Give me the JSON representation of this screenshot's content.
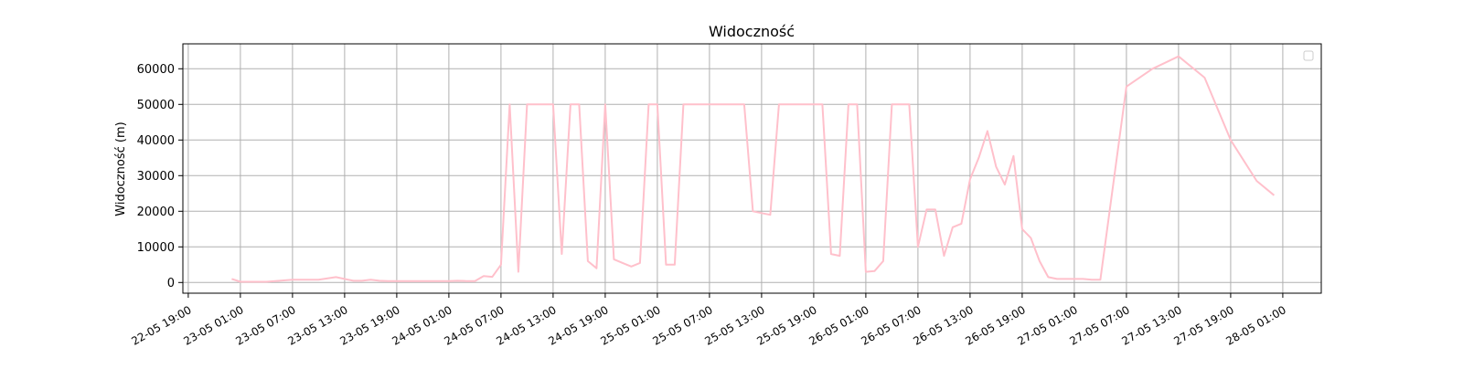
{
  "chart_data": {
    "type": "line",
    "title": "Widoczność",
    "xlabel": "",
    "ylabel": "Widoczność (m)",
    "x_unit": "hours since 22-05 19:00",
    "x_range": [
      -0.62,
      130.43
    ],
    "ylim": [
      -3000,
      67000
    ],
    "grid": true,
    "legend_placement": "top-right",
    "line_color": "#ffc0cb",
    "x_ticks": [
      {
        "label": "22-05 19:00",
        "value": 0
      },
      {
        "label": "23-05 01:00",
        "value": 6
      },
      {
        "label": "23-05 07:00",
        "value": 12
      },
      {
        "label": "23-05 13:00",
        "value": 18
      },
      {
        "label": "23-05 19:00",
        "value": 24
      },
      {
        "label": "24-05 01:00",
        "value": 30
      },
      {
        "label": "24-05 07:00",
        "value": 36
      },
      {
        "label": "24-05 13:00",
        "value": 42
      },
      {
        "label": "24-05 19:00",
        "value": 48
      },
      {
        "label": "25-05 01:00",
        "value": 54
      },
      {
        "label": "25-05 07:00",
        "value": 60
      },
      {
        "label": "25-05 13:00",
        "value": 66
      },
      {
        "label": "25-05 19:00",
        "value": 72
      },
      {
        "label": "26-05 01:00",
        "value": 78
      },
      {
        "label": "26-05 07:00",
        "value": 84
      },
      {
        "label": "26-05 13:00",
        "value": 90
      },
      {
        "label": "26-05 19:00",
        "value": 96
      },
      {
        "label": "27-05 01:00",
        "value": 102
      },
      {
        "label": "27-05 07:00",
        "value": 108
      },
      {
        "label": "27-05 13:00",
        "value": 114
      },
      {
        "label": "27-05 19:00",
        "value": 120
      },
      {
        "label": "28-05 01:00",
        "value": 126
      }
    ],
    "y_ticks": [
      {
        "label": "0",
        "value": 0
      },
      {
        "label": "10000",
        "value": 10000
      },
      {
        "label": "20000",
        "value": 20000
      },
      {
        "label": "30000",
        "value": 30000
      },
      {
        "label": "40000",
        "value": 40000
      },
      {
        "label": "50000",
        "value": 50000
      },
      {
        "label": "60000",
        "value": 60000
      }
    ],
    "series": [
      {
        "x": [
          5,
          6,
          9,
          12,
          15,
          17,
          19,
          20,
          21,
          22,
          23,
          24,
          25,
          26,
          27,
          28,
          29,
          30,
          31,
          32,
          33,
          34,
          35,
          36,
          37,
          38,
          39,
          40,
          41,
          42,
          43,
          44,
          45,
          46,
          47,
          48,
          49,
          50,
          51,
          52,
          53,
          54,
          55,
          56,
          57,
          58,
          59,
          60,
          61,
          62,
          63,
          64,
          65,
          66,
          67,
          68,
          69,
          70,
          71,
          72,
          73,
          74,
          75,
          76,
          77,
          78,
          79,
          80,
          81,
          82,
          83,
          84,
          85,
          86,
          87,
          88,
          89,
          90,
          91,
          92,
          93,
          94,
          95,
          96,
          97,
          98,
          99,
          100,
          101,
          102,
          103,
          104,
          105,
          108,
          111,
          114,
          117,
          120,
          123,
          125
        ],
        "y": [
          1000,
          200,
          200,
          800,
          800,
          1500,
          500,
          500,
          800,
          500,
          400,
          400,
          400,
          400,
          400,
          400,
          400,
          400,
          500,
          400,
          400,
          1800,
          1600,
          5000,
          50000,
          3000,
          50000,
          50000,
          50000,
          50000,
          8000,
          50000,
          50000,
          6000,
          4000,
          50000,
          6500,
          5500,
          4500,
          5500,
          50000,
          50000,
          5000,
          5000,
          50000,
          50000,
          50000,
          50000,
          50000,
          50000,
          50000,
          50000,
          20000,
          19500,
          19000,
          50000,
          50000,
          50000,
          50000,
          50000,
          50000,
          8000,
          7500,
          50000,
          50000,
          3000,
          3200,
          6000,
          50000,
          50000,
          50000,
          10000,
          20500,
          20500,
          7500,
          15500,
          16500,
          29000,
          35000,
          42500,
          32500,
          27500,
          35500,
          15000,
          12500,
          6000,
          1500,
          1000,
          1000,
          1000,
          1000,
          800,
          800,
          55000,
          60000,
          63500,
          57500,
          40000,
          28500,
          24500
        ]
      }
    ]
  }
}
